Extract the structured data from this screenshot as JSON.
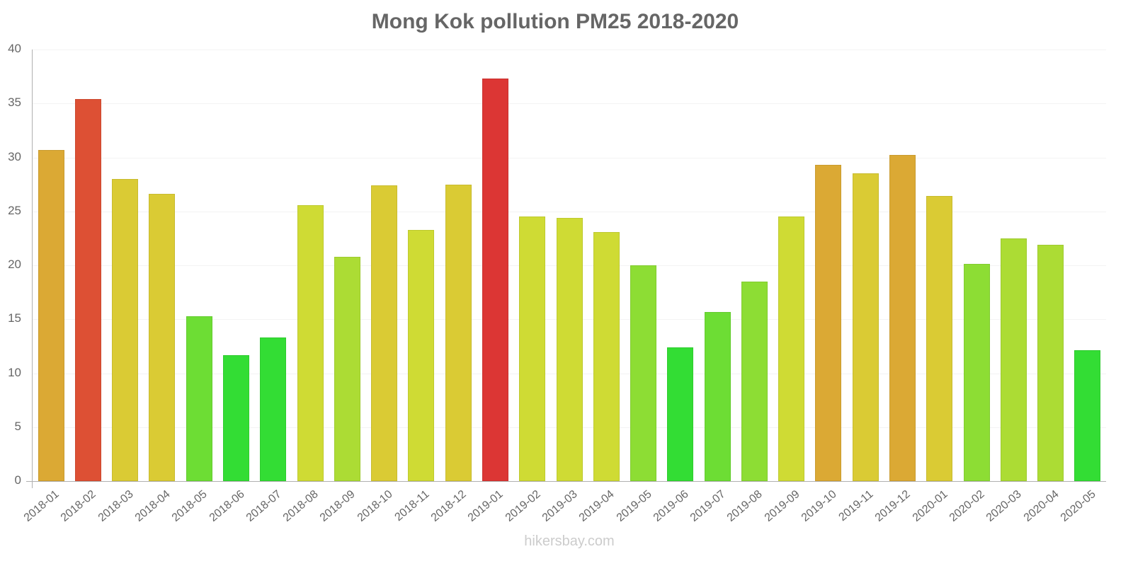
{
  "chart_data": {
    "type": "bar",
    "title": "Mong Kok pollution PM25 2018-2020",
    "xlabel": "",
    "ylabel": "",
    "ylim": [
      0,
      40
    ],
    "yticks": [
      0,
      5,
      10,
      15,
      20,
      25,
      30,
      35,
      40
    ],
    "grid": true,
    "legend": null,
    "categories": [
      "2018-01",
      "2018-02",
      "2018-03",
      "2018-04",
      "2018-05",
      "2018-06",
      "2018-07",
      "2018-08",
      "2018-09",
      "2018-10",
      "2018-11",
      "2018-12",
      "2019-01",
      "2019-02",
      "2019-03",
      "2019-04",
      "2019-05",
      "2019-06",
      "2019-07",
      "2019-08",
      "2019-09",
      "2019-10",
      "2019-11",
      "2019-12",
      "2020-01",
      "2020-02",
      "2020-03",
      "2020-04",
      "2020-05"
    ],
    "values": [
      30.7,
      35.4,
      28.0,
      26.6,
      15.3,
      11.7,
      13.3,
      25.6,
      20.8,
      27.4,
      23.3,
      27.5,
      37.3,
      24.5,
      24.4,
      23.1,
      20.0,
      12.4,
      15.7,
      18.5,
      24.5,
      29.3,
      28.5,
      30.2,
      26.4,
      20.1,
      22.5,
      21.9,
      12.1
    ],
    "colors": [
      "#dba934",
      "#dd5034",
      "#dacb34",
      "#dacb34",
      "#6ddd34",
      "#33dd34",
      "#33dd34",
      "#cfdb34",
      "#acdc34",
      "#dacb34",
      "#cfdb34",
      "#dacb34",
      "#dc3634",
      "#cfdb34",
      "#cfdb34",
      "#cfdb34",
      "#8ddd34",
      "#33dd34",
      "#6ddd34",
      "#8ddd34",
      "#cfdb34",
      "#dba934",
      "#dacb34",
      "#dba934",
      "#dacb34",
      "#8ddd34",
      "#acdc34",
      "#acdc34",
      "#33dd34"
    ]
  },
  "watermark": "hikersbay.com"
}
